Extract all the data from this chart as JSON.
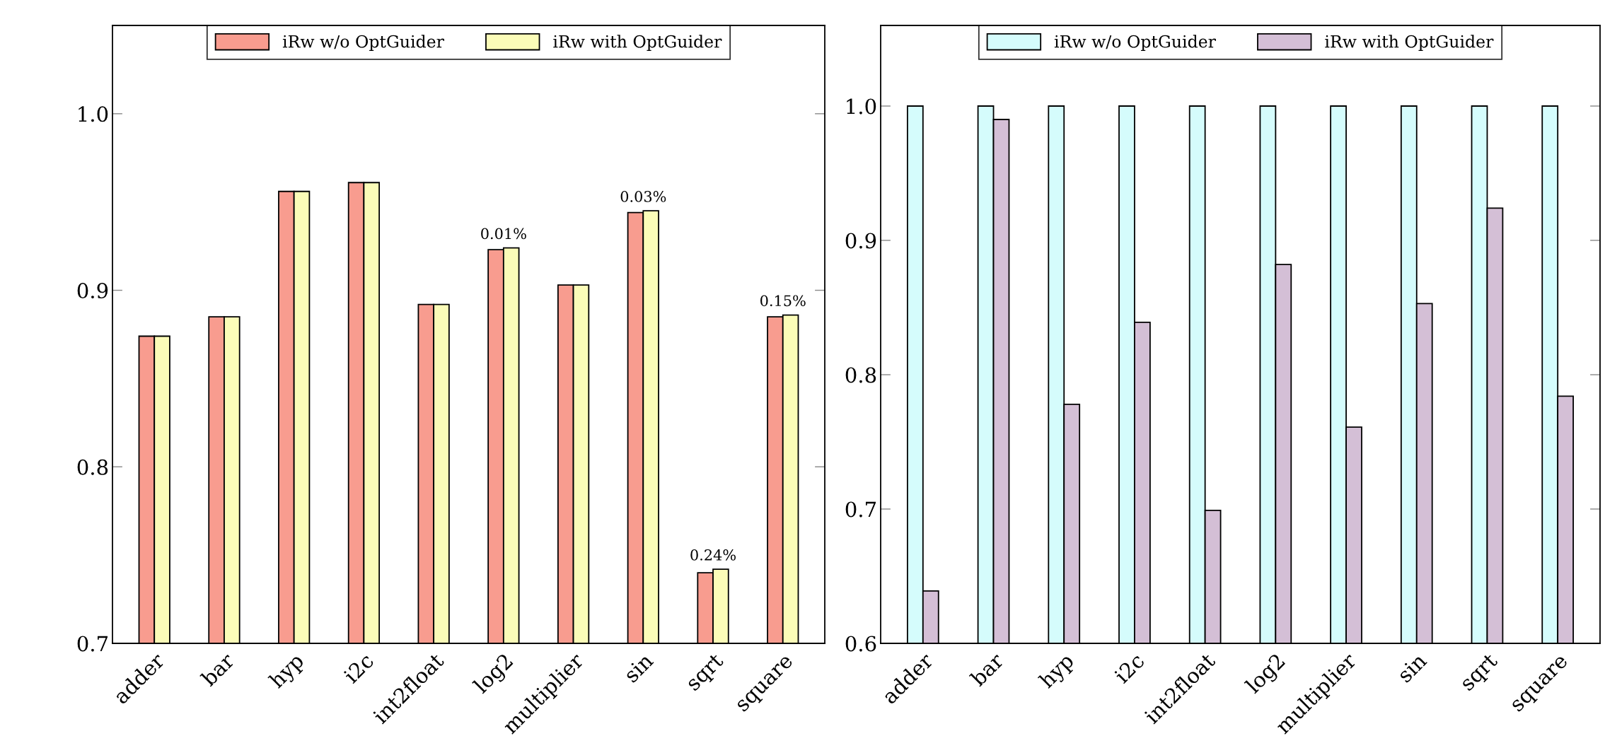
{
  "chart_data": [
    {
      "type": "bar",
      "categories": [
        "adder",
        "bar",
        "hyp",
        "i2c",
        "int2float",
        "log2",
        "multiplier",
        "sin",
        "sqrt",
        "square"
      ],
      "series": [
        {
          "name": "iRw w/o OptGuider",
          "color": "#f89c8f",
          "values": [
            0.874,
            0.885,
            0.956,
            0.961,
            0.892,
            0.923,
            0.903,
            0.944,
            0.74,
            0.885
          ]
        },
        {
          "name": "iRw with OptGuider",
          "color": "#fbfcb8",
          "values": [
            0.874,
            0.885,
            0.956,
            0.961,
            0.892,
            0.924,
            0.903,
            0.945,
            0.742,
            0.886
          ]
        }
      ],
      "ylim": [
        0.7,
        1.05
      ],
      "yticks": [
        {
          "value": 0.7,
          "label": "0.7"
        },
        {
          "value": 0.8,
          "label": "0.8"
        },
        {
          "value": 0.9,
          "label": "0.9"
        },
        {
          "value": 1.0,
          "label": "1.0"
        }
      ],
      "legend": "top",
      "grid": false,
      "annotations": [
        {
          "text": "0.01%",
          "x": "log2",
          "y": 0.924
        },
        {
          "text": "0.03%",
          "x": "sin",
          "y": 0.945
        },
        {
          "text": "0.24%",
          "x": "sqrt",
          "y": 0.742
        },
        {
          "text": "0.15%",
          "x": "square",
          "y": 0.886
        }
      ]
    },
    {
      "type": "bar",
      "categories": [
        "adder",
        "bar",
        "hyp",
        "i2c",
        "int2float",
        "log2",
        "multiplier",
        "sin",
        "sqrt",
        "square"
      ],
      "series": [
        {
          "name": "iRw w/o OptGuider",
          "color": "#d5fcfc",
          "values": [
            1.0,
            1.0,
            1.0,
            1.0,
            1.0,
            1.0,
            1.0,
            1.0,
            1.0,
            1.0
          ]
        },
        {
          "name": "iRw with OptGuider",
          "color": "#d4bfd6",
          "values": [
            0.639,
            0.99,
            0.778,
            0.839,
            0.699,
            0.882,
            0.761,
            0.853,
            0.924,
            0.784
          ]
        }
      ],
      "ylim": [
        0.6,
        1.06
      ],
      "yticks": [
        {
          "value": 0.6,
          "label": "0.6"
        },
        {
          "value": 0.7,
          "label": "0.7"
        },
        {
          "value": 0.8,
          "label": "0.8"
        },
        {
          "value": 0.9,
          "label": "0.9"
        },
        {
          "value": 1.0,
          "label": "1.0"
        }
      ],
      "legend": "top",
      "grid": false
    }
  ]
}
